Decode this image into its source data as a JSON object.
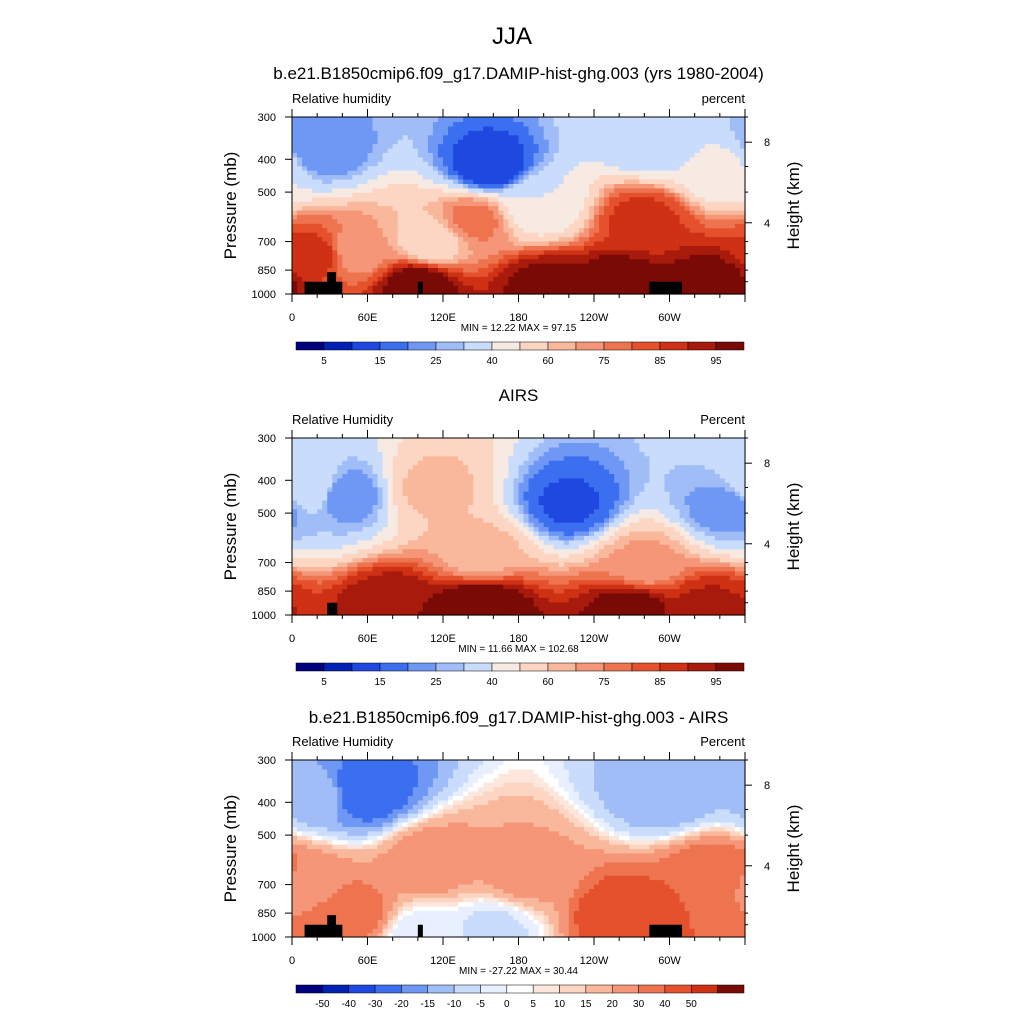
{
  "page_title": "JJA",
  "colors": {
    "rh_scale": [
      "#00007f",
      "#0022b4",
      "#1f48e0",
      "#3b6ff0",
      "#6f98f5",
      "#a0bdf8",
      "#cadcfb",
      "#f7eae2",
      "#fcd6c2",
      "#f9b79b",
      "#f49677",
      "#ee7450",
      "#e5512d",
      "#cf3115",
      "#a81a0c",
      "#7a0a05"
    ],
    "diff_scale": [
      "#00007f",
      "#0022b4",
      "#1f48e0",
      "#3b6ff0",
      "#6f98f5",
      "#a0bdf8",
      "#cadcfb",
      "#e8efff",
      "#ffffff",
      "#fde7dc",
      "#fcd6c2",
      "#f9b79b",
      "#f49677",
      "#ee7450",
      "#e5512d",
      "#cf3115",
      "#7a0a05"
    ],
    "topography": "#000000"
  },
  "chart_data": [
    {
      "type": "heatmap",
      "title": "b.e21.B1850cmip6.f09_g17.DAMIP-hist-ghg.003 (yrs 1980-2004)",
      "left_label": "Relative humidity",
      "right_label": "percent",
      "ylabel": "Pressure (mb)",
      "ylabel_right": "Height (km)",
      "x_ticks": [
        "0",
        "60E",
        "120E",
        "180",
        "120W",
        "60W"
      ],
      "y_ticks": [
        "300",
        "400",
        "500",
        "700",
        "850",
        "1000"
      ],
      "y_ticks_right": [
        "8",
        "4"
      ],
      "stats": "MIN =  12.22  MAX =  97.15",
      "colorbar_labels": [
        "5",
        "15",
        "25",
        "40",
        "60",
        "75",
        "85",
        "95"
      ],
      "colorbar_levels": [
        5,
        10,
        15,
        20,
        25,
        30,
        40,
        50,
        60,
        65,
        70,
        75,
        80,
        85,
        90,
        95
      ],
      "ylim": [
        1000,
        300
      ],
      "xlim": [
        0,
        360
      ],
      "features": [
        {
          "lon": 22,
          "p": 370,
          "value": 20
        },
        {
          "lon": 158,
          "p": 420,
          "value": 10
        },
        {
          "lon": 287,
          "p": 350,
          "value": 30
        },
        {
          "lon": 340,
          "p": 420,
          "value": 42
        },
        {
          "lon": 195,
          "p": 540,
          "value": 40
        },
        {
          "lon": 145,
          "p": 600,
          "value": 72
        },
        {
          "lon": 280,
          "p": 600,
          "value": 82
        },
        {
          "lon": 20,
          "p": 760,
          "value": 82
        },
        {
          "lon": 50,
          "p": 740,
          "value": 66
        },
        {
          "lon": 110,
          "p": 700,
          "value": 55
        },
        {
          "lon": 100,
          "p": 940,
          "value": 95
        },
        {
          "lon": 200,
          "p": 950,
          "value": 92
        },
        {
          "lon": 260,
          "p": 960,
          "value": 96
        },
        {
          "lon": 335,
          "p": 930,
          "value": 94
        }
      ],
      "topography": [
        {
          "lon0": 10,
          "lon1": 40,
          "p_top": 920
        },
        {
          "lon0": 28,
          "lon1": 35,
          "p_top": 862
        },
        {
          "lon0": 100,
          "lon1": 104,
          "p_top": 920
        },
        {
          "lon0": 284,
          "lon1": 310,
          "p_top": 920
        }
      ]
    },
    {
      "type": "heatmap",
      "title": "AIRS",
      "left_label": "Relative Humidity",
      "right_label": "Percent",
      "ylabel": "Pressure (mb)",
      "ylabel_right": "Height (km)",
      "x_ticks": [
        "0",
        "60E",
        "120E",
        "180",
        "120W",
        "60W"
      ],
      "y_ticks": [
        "300",
        "400",
        "500",
        "700",
        "850",
        "1000"
      ],
      "y_ticks_right": [
        "8",
        "4"
      ],
      "stats": "MIN =  11.66  MAX = 102.68",
      "colorbar_labels": [
        "5",
        "15",
        "25",
        "40",
        "60",
        "75",
        "85",
        "95"
      ],
      "colorbar_levels": [
        5,
        10,
        15,
        20,
        25,
        30,
        40,
        50,
        60,
        65,
        70,
        75,
        80,
        85,
        90,
        95
      ],
      "ylim": [
        1000,
        300
      ],
      "xlim": [
        0,
        360
      ],
      "features": [
        {
          "lon": 42,
          "p": 440,
          "value": 20
        },
        {
          "lon": 220,
          "p": 470,
          "value": 14
        },
        {
          "lon": 345,
          "p": 480,
          "value": 22
        },
        {
          "lon": 15,
          "p": 420,
          "value": 40
        },
        {
          "lon": 110,
          "p": 420,
          "value": 62
        },
        {
          "lon": 150,
          "p": 650,
          "value": 62
        },
        {
          "lon": 280,
          "p": 700,
          "value": 66
        },
        {
          "lon": 150,
          "p": 950,
          "value": 97
        },
        {
          "lon": 80,
          "p": 950,
          "value": 90
        },
        {
          "lon": 270,
          "p": 970,
          "value": 94
        },
        {
          "lon": 330,
          "p": 950,
          "value": 86
        }
      ],
      "topography": [
        {
          "lon0": 28,
          "lon1": 36,
          "p_top": 920
        }
      ]
    },
    {
      "type": "heatmap",
      "title": "b.e21.B1850cmip6.f09_g17.DAMIP-hist-ghg.003 - AIRS",
      "left_label": "Relative Humidity",
      "right_label": "Percent",
      "ylabel": "Pressure (mb)",
      "ylabel_right": "Height (km)",
      "x_ticks": [
        "0",
        "60E",
        "120E",
        "180",
        "120W",
        "60W"
      ],
      "y_ticks": [
        "300",
        "400",
        "500",
        "700",
        "850",
        "1000"
      ],
      "y_ticks_right": [
        "8",
        "4"
      ],
      "stats": "MIN = -27.22  MAX =  30.44",
      "colorbar_labels": [
        "-50",
        "-40",
        "-30",
        "-20",
        "-15",
        "-10",
        "-5",
        "0",
        "5",
        "10",
        "15",
        "20",
        "30",
        "40",
        "50"
      ],
      "colorbar_levels": [
        -50,
        -40,
        -30,
        -20,
        -15,
        -10,
        -5,
        -2,
        0,
        2,
        5,
        10,
        15,
        20,
        30,
        40,
        50
      ],
      "ylim": [
        1000,
        300
      ],
      "xlim": [
        0,
        360
      ],
      "features": [
        {
          "lon": 55,
          "p": 370,
          "value": -25
        },
        {
          "lon": 20,
          "p": 380,
          "value": -12
        },
        {
          "lon": 297,
          "p": 380,
          "value": -14
        },
        {
          "lon": 265,
          "p": 870,
          "value": 25
        },
        {
          "lon": 335,
          "p": 650,
          "value": 20
        },
        {
          "lon": 50,
          "p": 860,
          "value": 18
        },
        {
          "lon": 110,
          "p": 600,
          "value": 14
        },
        {
          "lon": 185,
          "p": 650,
          "value": 12
        },
        {
          "lon": 160,
          "p": 950,
          "value": -6
        },
        {
          "lon": 100,
          "p": 980,
          "value": -4
        },
        {
          "lon": 10,
          "p": 700,
          "value": 14
        }
      ],
      "topography": [
        {
          "lon0": 10,
          "lon1": 40,
          "p_top": 920
        },
        {
          "lon0": 28,
          "lon1": 35,
          "p_top": 862
        },
        {
          "lon0": 100,
          "lon1": 104,
          "p_top": 920
        },
        {
          "lon0": 284,
          "lon1": 310,
          "p_top": 920
        }
      ]
    }
  ]
}
